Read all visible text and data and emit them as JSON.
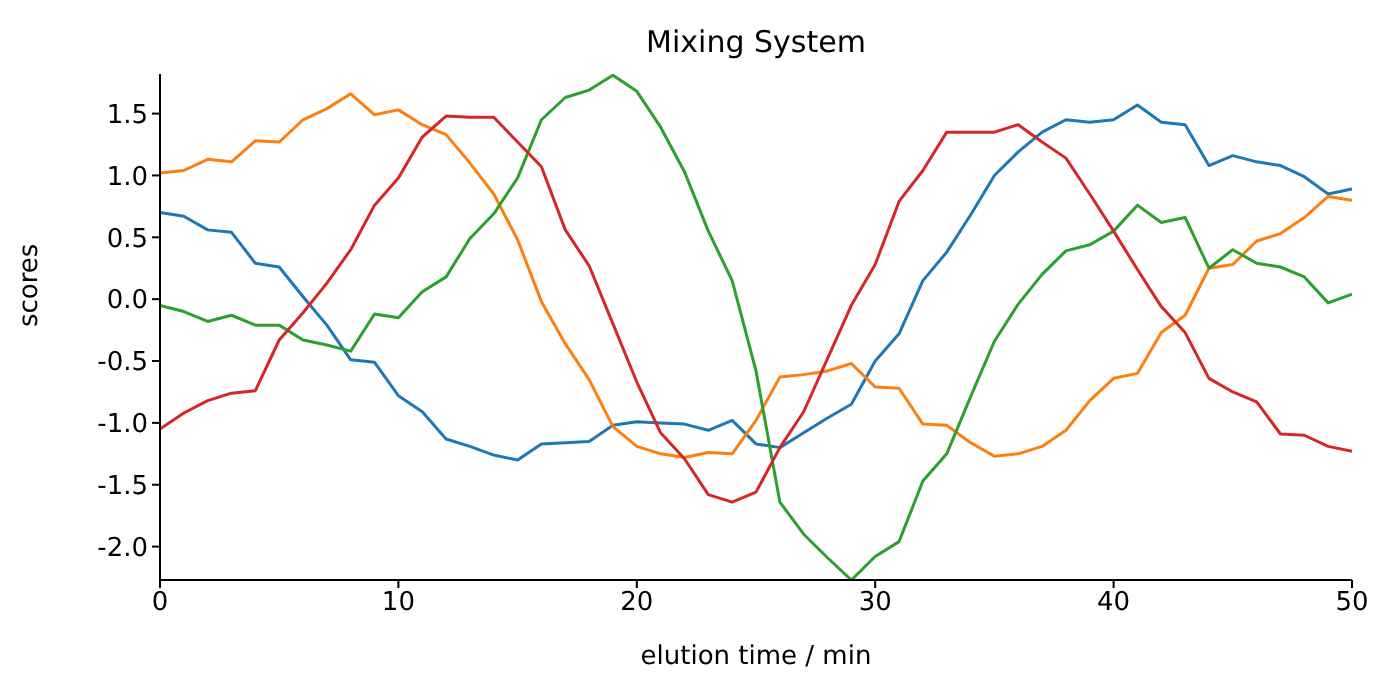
{
  "chart_data": {
    "type": "line",
    "title": "Mixing System",
    "xlabel": "elution time / min",
    "ylabel": "scores",
    "x": [
      0,
      1,
      2,
      3,
      4,
      5,
      6,
      7,
      8,
      9,
      10,
      11,
      12,
      13,
      14,
      15,
      16,
      17,
      18,
      19,
      20,
      21,
      22,
      23,
      24,
      25,
      26,
      27,
      28,
      29,
      30,
      31,
      32,
      33,
      34,
      35,
      36,
      37,
      38,
      39,
      40,
      41,
      42,
      43,
      44,
      45,
      46,
      47,
      48,
      49,
      50
    ],
    "series": [
      {
        "color": "#1f77b4",
        "values": [
          0.7,
          0.67,
          0.56,
          0.54,
          0.29,
          0.26,
          0.02,
          -0.21,
          -0.49,
          -0.51,
          -0.78,
          -0.91,
          -1.13,
          -1.19,
          -1.26,
          -1.3,
          -1.17,
          -1.16,
          -1.15,
          -1.02,
          -0.99,
          -1.0,
          -1.01,
          -1.06,
          -0.98,
          -1.17,
          -1.2,
          -1.08,
          -0.96,
          -0.85,
          -0.5,
          -0.28,
          0.15,
          0.38,
          0.68,
          1.0,
          1.19,
          1.35,
          1.45,
          1.43,
          1.45,
          1.57,
          1.43,
          1.41,
          1.08,
          1.16,
          1.11,
          1.08,
          0.99,
          0.85,
          0.89
        ]
      },
      {
        "color": "#ff7f0e",
        "values": [
          1.02,
          1.04,
          1.13,
          1.11,
          1.28,
          1.27,
          1.45,
          1.54,
          1.66,
          1.49,
          1.53,
          1.41,
          1.33,
          1.1,
          0.85,
          0.48,
          -0.02,
          -0.36,
          -0.65,
          -1.03,
          -1.19,
          -1.25,
          -1.28,
          -1.24,
          -1.25,
          -0.98,
          -0.63,
          -0.61,
          -0.58,
          -0.52,
          -0.71,
          -0.72,
          -1.01,
          -1.02,
          -1.16,
          -1.27,
          -1.25,
          -1.19,
          -1.06,
          -0.82,
          -0.64,
          -0.6,
          -0.27,
          -0.13,
          0.25,
          0.28,
          0.47,
          0.53,
          0.66,
          0.83,
          0.8
        ]
      },
      {
        "color": "#2ca02c",
        "values": [
          -0.05,
          -0.1,
          -0.18,
          -0.13,
          -0.21,
          -0.21,
          -0.33,
          -0.37,
          -0.42,
          -0.12,
          -0.15,
          0.06,
          0.18,
          0.49,
          0.69,
          0.98,
          1.45,
          1.63,
          1.69,
          1.81,
          1.68,
          1.39,
          1.03,
          0.55,
          0.15,
          -0.58,
          -1.64,
          -1.9,
          -2.09,
          -2.27,
          -2.08,
          -1.96,
          -1.47,
          -1.25,
          -0.79,
          -0.34,
          -0.04,
          0.2,
          0.39,
          0.44,
          0.55,
          0.76,
          0.62,
          0.66,
          0.25,
          0.4,
          0.29,
          0.26,
          0.18,
          -0.03,
          0.04
        ]
      },
      {
        "color": "#d62728",
        "values": [
          -1.05,
          -0.92,
          -0.82,
          -0.76,
          -0.74,
          -0.33,
          -0.11,
          0.13,
          0.4,
          0.76,
          0.98,
          1.31,
          1.48,
          1.47,
          1.47,
          1.27,
          1.07,
          0.56,
          0.27,
          -0.2,
          -0.67,
          -1.08,
          -1.29,
          -1.58,
          -1.64,
          -1.56,
          -1.2,
          -0.91,
          -0.48,
          -0.05,
          0.28,
          0.79,
          1.04,
          1.35,
          1.35,
          1.35,
          1.41,
          1.27,
          1.14,
          0.85,
          0.55,
          0.24,
          -0.06,
          -0.27,
          -0.64,
          -0.75,
          -0.83,
          -1.09,
          -1.1,
          -1.19,
          -1.23
        ]
      }
    ],
    "xlim": [
      0,
      50
    ],
    "xticks": [
      0,
      10,
      20,
      30,
      40,
      50
    ],
    "ylim": [
      -2.27,
      1.82
    ],
    "yticks": [
      {
        "value": -2,
        "label": "-2.0"
      },
      {
        "value": -1.5,
        "label": "-1.5"
      },
      {
        "value": -1,
        "label": "-1.0"
      },
      {
        "value": -0.5,
        "label": "-0.5"
      },
      {
        "value": 0,
        "label": "0.0"
      },
      {
        "value": 0.5,
        "label": "0.5"
      },
      {
        "value": 1,
        "label": "1.0"
      },
      {
        "value": 1.5,
        "label": "1.5"
      }
    ],
    "grid": false,
    "legend": false,
    "marker": "none",
    "line_style": "solid"
  }
}
